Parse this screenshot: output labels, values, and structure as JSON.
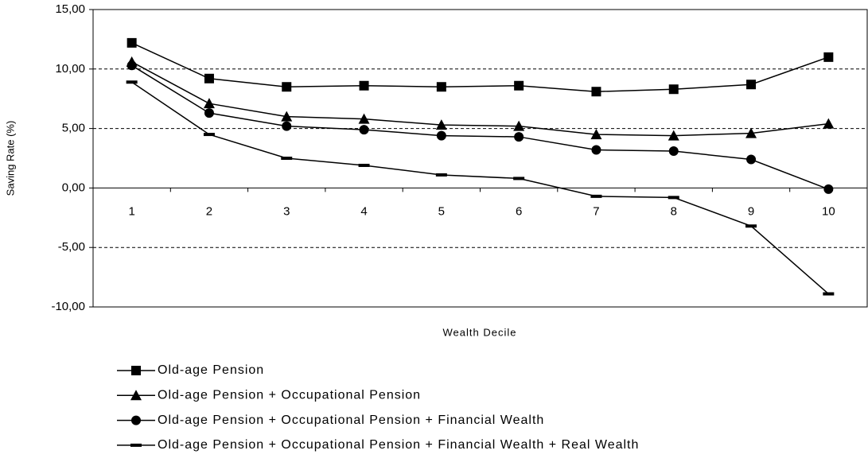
{
  "chart_data": {
    "type": "line",
    "x_label": "Wealth Decile",
    "y_label": "Saving Rate (%)",
    "categories": [
      "1",
      "2",
      "3",
      "4",
      "5",
      "6",
      "7",
      "8",
      "9",
      "10"
    ],
    "series": [
      {
        "name": "Old-age Pension",
        "color": "#000000",
        "marker": "square",
        "values": [
          12.2,
          9.2,
          8.5,
          8.6,
          8.5,
          8.6,
          8.1,
          8.3,
          8.7,
          11.0
        ]
      },
      {
        "name": "Old-age Pension + Occupational Pension",
        "color": "#000000",
        "marker": "triangle",
        "values": [
          10.6,
          7.1,
          6.0,
          5.8,
          5.3,
          5.2,
          4.5,
          4.4,
          4.6,
          5.4
        ]
      },
      {
        "name": "Old-age Pension + Occupational Pension + Financial Wealth",
        "color": "#000000",
        "marker": "circle",
        "values": [
          10.3,
          6.3,
          5.2,
          4.9,
          4.4,
          4.3,
          3.2,
          3.1,
          2.4,
          -0.1
        ]
      },
      {
        "name": "Old-age Pension + Occupational Pension + Financial Wealth + Real Wealth",
        "color": "#000000",
        "marker": "dash",
        "values": [
          8.9,
          4.5,
          2.5,
          1.9,
          1.1,
          0.8,
          -0.7,
          -0.8,
          -3.2,
          -8.9
        ]
      }
    ],
    "ylim": [
      -10,
      15
    ],
    "yticks": [
      {
        "value": -10,
        "label": "-10,00"
      },
      {
        "value": -5,
        "label": "-5,00"
      },
      {
        "value": 0,
        "label": "0,00"
      },
      {
        "value": 5,
        "label": "5,00"
      },
      {
        "value": 10,
        "label": "10,00"
      },
      {
        "value": 15,
        "label": "15,00"
      }
    ],
    "grid": true
  }
}
